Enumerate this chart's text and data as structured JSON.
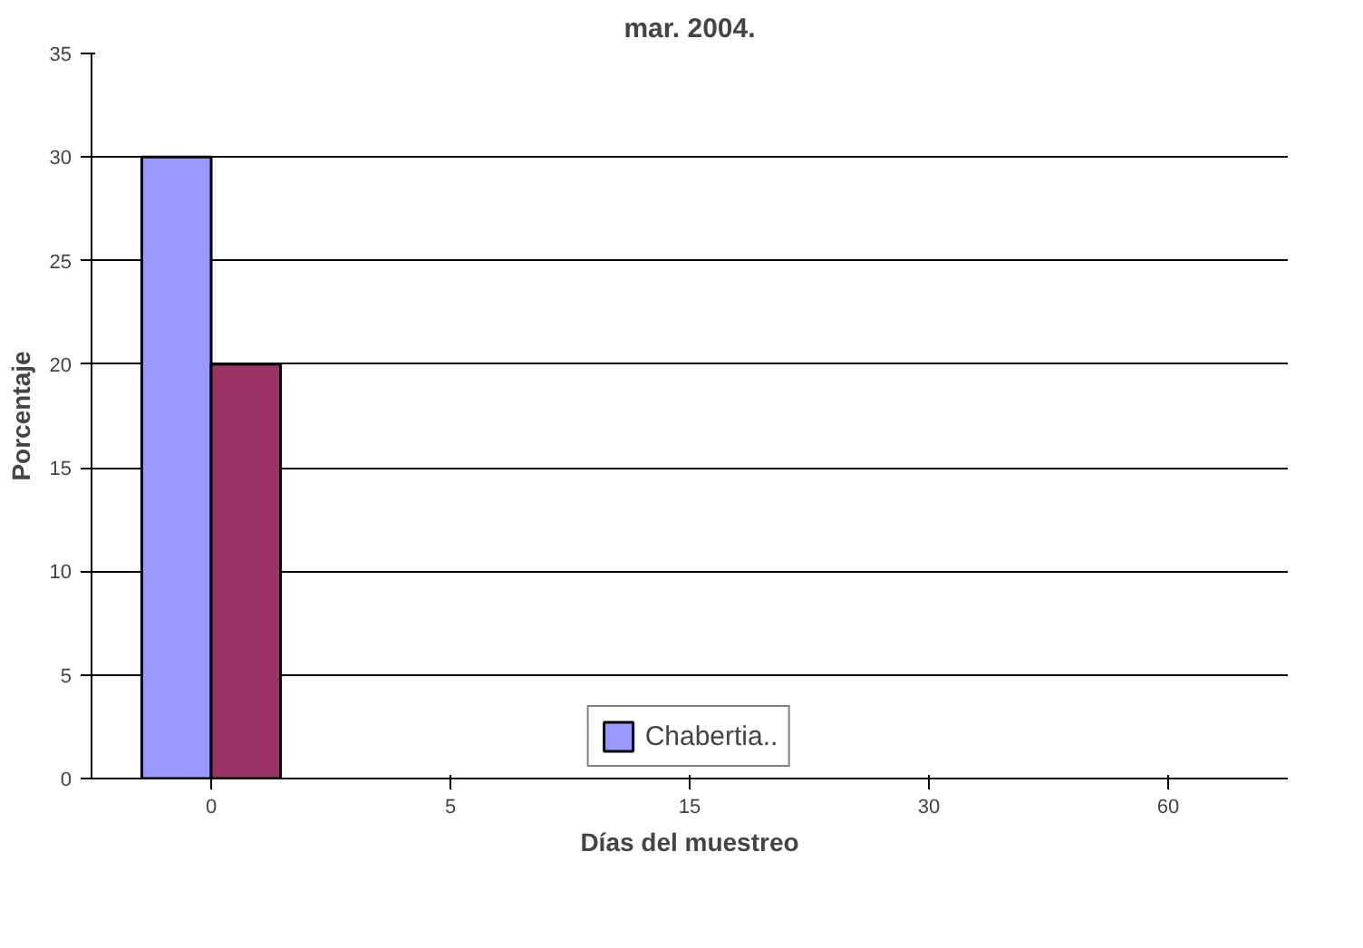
{
  "chart_data": {
    "type": "bar",
    "title": "mar. 2004.",
    "xlabel": "Días del muestreo",
    "ylabel": "Porcentaje",
    "categories": [
      "0",
      "5",
      "15",
      "30",
      "60"
    ],
    "series": [
      {
        "name": "Chabertia..",
        "color": "#9999ff",
        "values": [
          30,
          null,
          null,
          null,
          null
        ]
      },
      {
        "color": "#993366",
        "values": [
          20,
          null,
          null,
          null,
          null
        ]
      }
    ],
    "ylim": [
      0,
      35
    ],
    "yticks": [
      0,
      5,
      10,
      15,
      20,
      25,
      30,
      35
    ],
    "grid": "y",
    "legend": "bottom"
  }
}
